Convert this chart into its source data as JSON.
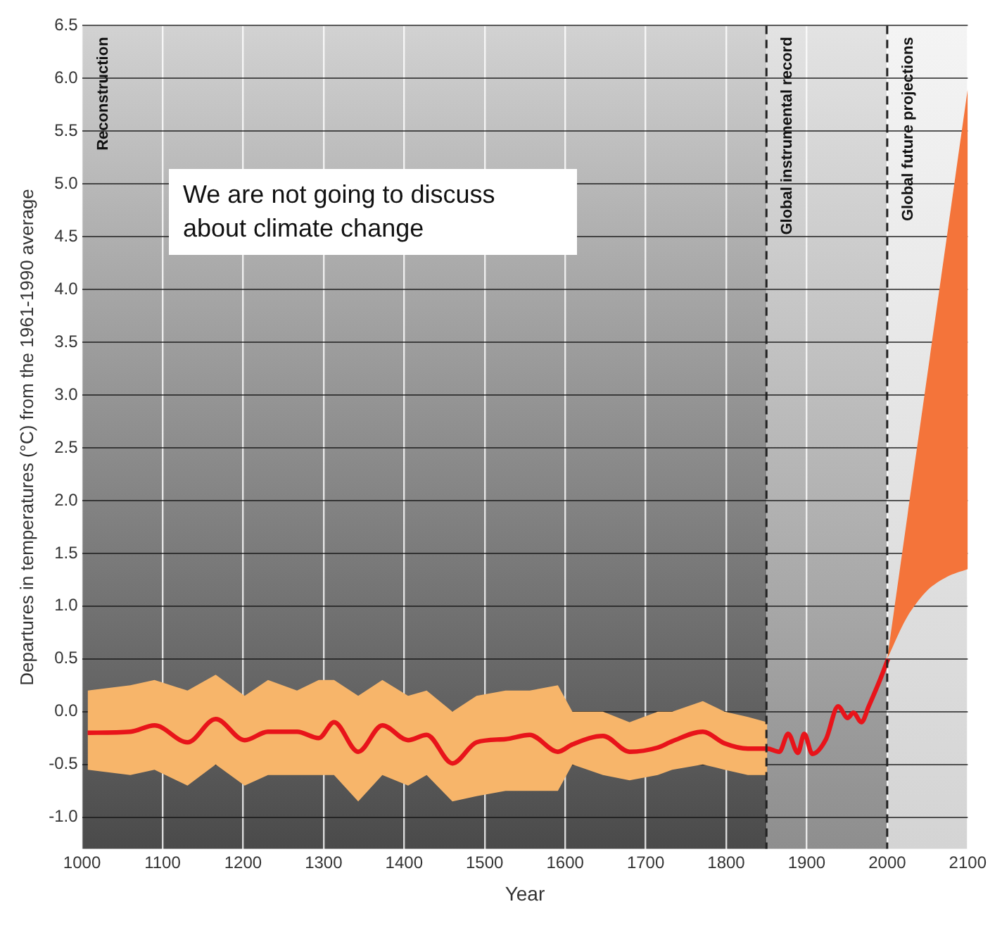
{
  "chart_data": {
    "type": "line",
    "xlabel": "Year",
    "ylabel": "Departures in temperatures (°C) from the 1961-1990 average",
    "annotations": [
      "We are not going to discuss about climate change"
    ],
    "xlim": [
      1000,
      2100
    ],
    "xticks": [
      1000,
      1100,
      1200,
      1300,
      1400,
      1500,
      1600,
      1700,
      1800,
      1900,
      2000,
      2100
    ],
    "ylim": [
      -1.3,
      6.5
    ],
    "yticks": [
      {
        "value": -1,
        "label": "-1.0"
      },
      -0.5,
      {
        "value": 0,
        "label": "0.0"
      },
      0.5,
      {
        "value": 1,
        "label": "1.0"
      },
      1.5,
      {
        "value": 2,
        "label": "2.0"
      },
      2.5,
      {
        "value": 3,
        "label": "3.0"
      },
      3.5,
      {
        "value": 4,
        "label": "4.0"
      },
      4.5,
      {
        "value": 5,
        "label": "5.0"
      },
      5.5,
      {
        "value": 6,
        "label": "6.0"
      },
      6.5
    ],
    "grid": true,
    "legend": false,
    "line_style": "solid",
    "marker": "none",
    "series": [
      {
        "type": "line",
        "x": [
          1007,
          1060,
          1090,
          1131,
          1166,
          1202,
          1231,
          1267,
          1294,
          1313,
          1343,
          1373,
          1405,
          1428,
          1460,
          1490,
          1526,
          1556,
          1591,
          1609,
          1647,
          1680,
          1715,
          1733,
          1771,
          1798,
          1827,
          1851,
          1866,
          1877,
          1889,
          1897,
          1907,
          1924,
          1939,
          1951,
          1958,
          1968,
          1977,
          1992,
          2001
        ],
        "values": [
          -0.2,
          -0.19,
          -0.13,
          -0.29,
          -0.07,
          -0.27,
          -0.19,
          -0.19,
          -0.25,
          -0.1,
          -0.38,
          -0.13,
          -0.27,
          -0.22,
          -0.49,
          -0.29,
          -0.26,
          -0.22,
          -0.38,
          -0.31,
          -0.23,
          -0.38,
          -0.34,
          -0.28,
          -0.19,
          -0.3,
          -0.35,
          -0.35,
          -0.38,
          -0.21,
          -0.39,
          -0.21,
          -0.4,
          -0.26,
          0.05,
          -0.06,
          -0.01,
          -0.1,
          0.05,
          0.32,
          0.5
        ],
        "upper": [
          0.2,
          0.25,
          0.3,
          0.2,
          0.35,
          0.15,
          0.3,
          0.2,
          0.3,
          0.3,
          0.15,
          0.3,
          0.15,
          0.2,
          0,
          0.15,
          0.2,
          0.2,
          0.25,
          0,
          0,
          -0.1,
          0,
          0,
          0.1,
          0,
          -0.05,
          -0.1,
          null,
          null,
          null,
          null,
          null,
          null,
          null,
          null,
          null,
          null,
          null,
          null,
          null
        ],
        "lower": [
          -0.55,
          -0.6,
          -0.55,
          -0.7,
          -0.5,
          -0.7,
          -0.6,
          -0.6,
          -0.6,
          -0.6,
          -0.85,
          -0.6,
          -0.7,
          -0.6,
          -0.85,
          -0.8,
          -0.75,
          -0.75,
          -0.75,
          -0.5,
          -0.6,
          -0.65,
          -0.6,
          -0.55,
          -0.5,
          -0.55,
          -0.6,
          -0.6,
          null,
          null,
          null,
          null,
          null,
          null,
          null,
          null,
          null,
          null,
          null,
          null,
          null
        ],
        "color": "#e8141a"
      },
      {
        "type": "area",
        "color": "#f4743a",
        "x": [
          2000,
          2025,
          2050,
          2075,
          2100
        ],
        "values": [
          null,
          null,
          null,
          null,
          null
        ],
        "upper": [
          0.5,
          1.85,
          3.2,
          4.55,
          5.9
        ],
        "lower": [
          0.5,
          0.9,
          1.15,
          1.28,
          1.35
        ]
      }
    ],
    "bands": [
      {
        "axis": "x",
        "from": 1000,
        "to": 1850,
        "label": "Reconstruction",
        "color": "#4a4a4a"
      },
      {
        "axis": "x",
        "from": 1850,
        "to": 2000,
        "label": "Global instrumental record",
        "color": "#8e8e8e"
      },
      {
        "axis": "x",
        "from": 2000,
        "to": 2100,
        "label": "Global future projections",
        "color": "#d4d4d4"
      }
    ],
    "ref_lines": [
      {
        "axis": "x",
        "value": 1850,
        "line_style": "dashed",
        "color": "#222222"
      },
      {
        "axis": "x",
        "value": 2000,
        "line_style": "dashed",
        "color": "#222222"
      }
    ]
  }
}
